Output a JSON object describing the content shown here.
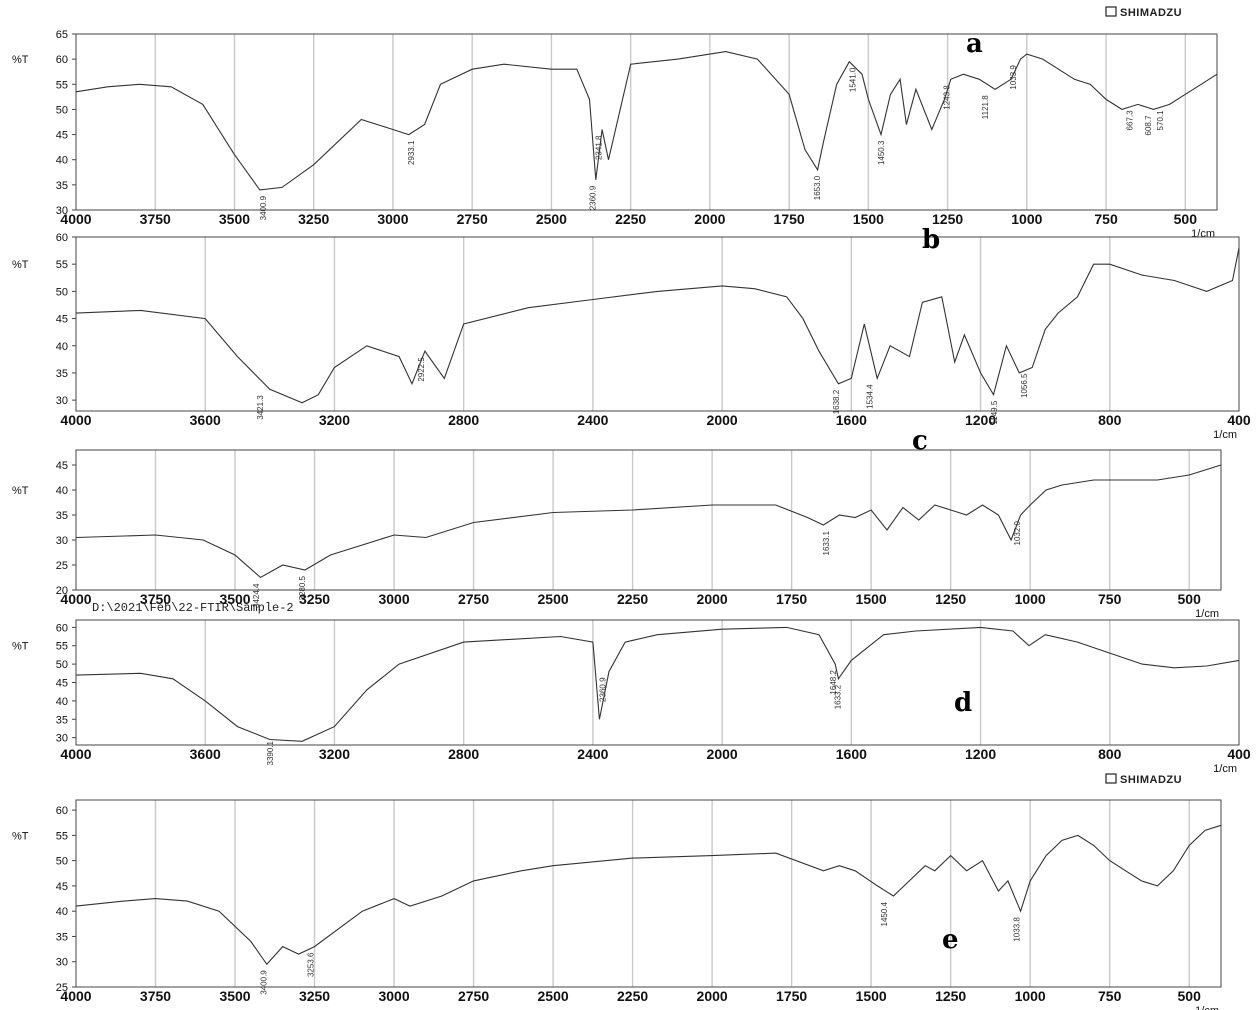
{
  "brand_top": "SHIMADZU",
  "brand_bottom": "SHIMADZU",
  "file_path": "D:\\2021\\Feb\\22-FTIR\\Sample-2",
  "chart_data": [
    {
      "type": "line",
      "panel_label": "a",
      "ylabel": "%T",
      "xunit": "1/cm",
      "xlim": [
        4000,
        400
      ],
      "ylim": [
        30,
        65
      ],
      "x_ticks": [
        4000,
        3750,
        3500,
        3250,
        3000,
        2750,
        2500,
        2250,
        2000,
        1750,
        1500,
        1250,
        1000,
        750,
        500
      ],
      "y_ticks": [
        30,
        35,
        40,
        45,
        50,
        55,
        60,
        65
      ],
      "x": [
        4000,
        3900,
        3800,
        3700,
        3600,
        3500,
        3420,
        3350,
        3250,
        3100,
        3000,
        2950,
        2900,
        2850,
        2750,
        2650,
        2500,
        2420,
        2380,
        2360,
        2340,
        2320,
        2250,
        2100,
        2000,
        1950,
        1850,
        1750,
        1700,
        1660,
        1640,
        1600,
        1560,
        1520,
        1500,
        1460,
        1430,
        1400,
        1380,
        1350,
        1300,
        1260,
        1240,
        1200,
        1150,
        1100,
        1050,
        1020,
        1000,
        950,
        900,
        850,
        800,
        750,
        700,
        650,
        600,
        550,
        500,
        450,
        400
      ],
      "y": [
        53.5,
        54.5,
        55,
        54.5,
        51,
        41,
        34,
        34.5,
        39,
        48,
        46,
        45,
        47,
        55,
        58,
        59,
        58,
        58,
        52,
        36,
        46,
        40,
        59,
        60,
        61,
        61.5,
        60,
        53,
        42,
        38,
        44,
        55,
        59.5,
        57,
        52,
        45,
        53,
        56,
        47,
        54,
        46,
        52,
        56,
        57,
        56,
        54,
        56,
        60,
        61,
        60,
        58,
        56,
        55,
        52,
        50,
        51,
        50,
        51,
        53,
        55,
        57
      ],
      "annotations": [
        "3400.9",
        "2933.1",
        "2360.9",
        "2341.8",
        "1653.0",
        "1541.0",
        "1450.3",
        "1243.8",
        "1121.8",
        "1033.9",
        "667.3",
        "608.7",
        "570.1"
      ]
    },
    {
      "type": "line",
      "panel_label": "b",
      "ylabel": "%T",
      "xunit": "1/cm",
      "xlim": [
        4000,
        400
      ],
      "ylim": [
        28,
        60
      ],
      "x_ticks": [
        4000,
        3600,
        3200,
        2800,
        2400,
        2000,
        1600,
        1200,
        800,
        400
      ],
      "y_ticks": [
        30,
        35,
        40,
        45,
        50,
        55,
        60
      ],
      "x": [
        4000,
        3800,
        3600,
        3500,
        3400,
        3300,
        3250,
        3200,
        3100,
        3000,
        2960,
        2920,
        2860,
        2800,
        2600,
        2400,
        2200,
        2000,
        1900,
        1800,
        1750,
        1700,
        1640,
        1600,
        1560,
        1520,
        1480,
        1420,
        1380,
        1320,
        1280,
        1250,
        1200,
        1160,
        1120,
        1080,
        1040,
        1000,
        960,
        900,
        850,
        800,
        700,
        600,
        500,
        420,
        400
      ],
      "y": [
        46,
        46.5,
        45,
        38,
        32,
        29.5,
        31,
        36,
        40,
        38,
        33,
        39,
        34,
        44,
        47,
        48.5,
        50,
        51,
        50.5,
        49,
        45,
        39,
        33,
        34,
        44,
        34,
        40,
        38,
        48,
        49,
        37,
        42,
        35,
        31,
        40,
        35,
        36,
        43,
        46,
        49,
        55,
        55,
        53,
        52,
        50,
        52,
        58
      ],
      "annotations": [
        "3421.3",
        "2922.5",
        "1638.2",
        "1534.4",
        "1149.5",
        "1056.5"
      ]
    },
    {
      "type": "line",
      "panel_label": "c",
      "ylabel": "%T",
      "xunit": "1/cm",
      "xlim": [
        4000,
        400
      ],
      "ylim": [
        20,
        48
      ],
      "x_ticks": [
        4000,
        3750,
        3500,
        3250,
        3000,
        2750,
        2500,
        2250,
        2000,
        1750,
        1500,
        1250,
        1000,
        750,
        500
      ],
      "y_ticks": [
        20,
        25,
        30,
        35,
        40,
        45
      ],
      "x": [
        4000,
        3750,
        3600,
        3500,
        3420,
        3350,
        3280,
        3200,
        3000,
        2900,
        2750,
        2500,
        2250,
        2000,
        1800,
        1700,
        1650,
        1600,
        1550,
        1500,
        1450,
        1400,
        1350,
        1300,
        1250,
        1200,
        1150,
        1100,
        1060,
        1030,
        1000,
        950,
        900,
        800,
        700,
        600,
        500,
        450,
        400
      ],
      "y": [
        30.5,
        31,
        30,
        27,
        22.5,
        25,
        24,
        27,
        31,
        30.5,
        33.5,
        35.5,
        36,
        37,
        37,
        34.5,
        33,
        35,
        34.5,
        36,
        32,
        36.5,
        34,
        37,
        36,
        35,
        37,
        35,
        30,
        35,
        37,
        40,
        41,
        42,
        42,
        42,
        43,
        44,
        45
      ],
      "annotations": [
        "3424.4",
        "3280.5",
        "1633.1",
        "1032.0"
      ]
    },
    {
      "type": "line",
      "panel_label": "d",
      "ylabel": "%T",
      "xunit": "1/cm",
      "xlim": [
        4000,
        400
      ],
      "ylim": [
        28,
        62
      ],
      "x_ticks": [
        4000,
        3600,
        3200,
        2800,
        2400,
        2000,
        1600,
        1200,
        800,
        400
      ],
      "y_ticks": [
        30,
        35,
        40,
        45,
        50,
        55,
        60
      ],
      "x": [
        4000,
        3800,
        3700,
        3600,
        3500,
        3400,
        3300,
        3200,
        3100,
        3000,
        2800,
        2500,
        2400,
        2380,
        2350,
        2300,
        2200,
        2000,
        1800,
        1700,
        1650,
        1640,
        1600,
        1500,
        1400,
        1200,
        1100,
        1050,
        1000,
        900,
        800,
        700,
        600,
        500,
        400
      ],
      "y": [
        47,
        47.5,
        46,
        40,
        33,
        29.5,
        29,
        33,
        43,
        50,
        56,
        57.5,
        56,
        35,
        48,
        56,
        58,
        59.5,
        60,
        58,
        50,
        46,
        51,
        58,
        59,
        60,
        59,
        55,
        58,
        56,
        53,
        50,
        49,
        49.5,
        51
      ],
      "annotations": [
        "3390.1",
        "2360.9",
        "1648.2",
        "1633.2"
      ]
    },
    {
      "type": "line",
      "panel_label": "e",
      "ylabel": "%T",
      "xunit": "1/cm",
      "xlim": [
        4000,
        400
      ],
      "ylim": [
        25,
        62
      ],
      "x_ticks": [
        4000,
        3750,
        3500,
        3250,
        3000,
        2750,
        2500,
        2250,
        2000,
        1750,
        1500,
        1250,
        1000,
        750,
        500
      ],
      "y_ticks": [
        25,
        30,
        35,
        40,
        45,
        50,
        55,
        60
      ],
      "x": [
        4000,
        3850,
        3750,
        3650,
        3550,
        3450,
        3400,
        3350,
        3300,
        3250,
        3100,
        3000,
        2950,
        2850,
        2750,
        2600,
        2500,
        2250,
        2000,
        1800,
        1650,
        1600,
        1550,
        1480,
        1430,
        1380,
        1330,
        1300,
        1250,
        1200,
        1150,
        1100,
        1070,
        1030,
        1000,
        950,
        900,
        850,
        800,
        750,
        700,
        650,
        600,
        550,
        500,
        450,
        400
      ],
      "y": [
        41,
        42,
        42.5,
        42,
        40,
        34,
        29.5,
        33,
        31.5,
        33,
        40,
        42.5,
        41,
        43,
        46,
        48,
        49,
        50.5,
        51,
        51.5,
        48,
        49,
        48,
        45,
        43,
        46,
        49,
        48,
        51,
        48,
        50,
        44,
        46,
        40,
        46,
        51,
        54,
        55,
        53,
        50,
        48,
        46,
        45,
        48,
        53,
        56,
        57
      ],
      "annotations": [
        "3400.9",
        "3253.6",
        "1450.4",
        "1033.8"
      ]
    }
  ]
}
